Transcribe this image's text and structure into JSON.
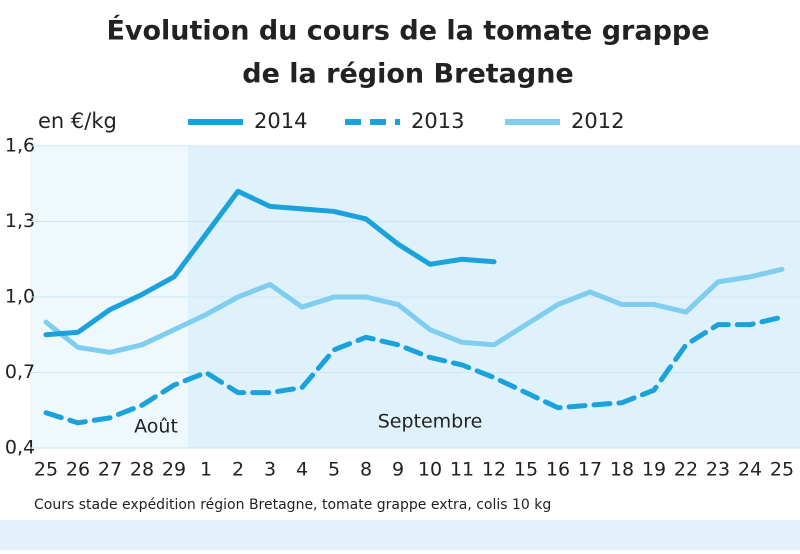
{
  "chart_data": {
    "type": "line",
    "title": "Évolution du cours de la tomate grappe",
    "subtitle": "de la région Bretagne",
    "y_label": "en €/kg",
    "note": "Cours stade expédition région Bretagne, tomate grappe extra, colis 10 kg",
    "annotations": [
      "Août",
      "Septembre"
    ],
    "categories": [
      "25",
      "26",
      "27",
      "28",
      "29",
      "1",
      "2",
      "3",
      "4",
      "5",
      "8",
      "9",
      "10",
      "11",
      "12",
      "15",
      "16",
      "17",
      "18",
      "19",
      "22",
      "23",
      "24",
      "25"
    ],
    "series": [
      {
        "name": "2014",
        "color": "#19a2dc",
        "dash": false,
        "values": [
          0.85,
          0.86,
          0.95,
          1.01,
          1.08,
          1.25,
          1.42,
          1.36,
          1.35,
          1.34,
          1.31,
          1.21,
          1.13,
          1.15,
          1.14,
          null,
          null,
          null,
          null,
          null,
          null,
          null,
          null,
          null
        ]
      },
      {
        "name": "2013",
        "color": "#19a2dc",
        "dash": true,
        "values": [
          0.54,
          0.5,
          0.52,
          0.57,
          0.65,
          0.7,
          0.62,
          0.62,
          0.64,
          0.79,
          0.84,
          0.81,
          0.76,
          0.73,
          0.68,
          0.62,
          0.56,
          0.57,
          0.58,
          0.63,
          0.81,
          0.89,
          0.89,
          0.92
        ]
      },
      {
        "name": "2012",
        "color": "#7fcdef",
        "dash": false,
        "values": [
          0.9,
          0.8,
          0.78,
          0.81,
          0.87,
          0.93,
          1.0,
          1.05,
          0.96,
          1.0,
          1.0,
          0.97,
          0.87,
          0.82,
          0.81,
          0.89,
          0.97,
          1.02,
          0.97,
          0.97,
          0.94,
          1.06,
          1.08,
          1.11
        ]
      }
    ],
    "ylim": [
      0.4,
      1.6
    ],
    "yticks": [
      {
        "value": 0.4,
        "label": "0,4"
      },
      {
        "value": 0.7,
        "label": "0,7"
      },
      {
        "value": 1.0,
        "label": "1,0"
      },
      {
        "value": 1.3,
        "label": "1,3"
      },
      {
        "value": 1.6,
        "label": "1,6"
      }
    ],
    "grid": true
  }
}
